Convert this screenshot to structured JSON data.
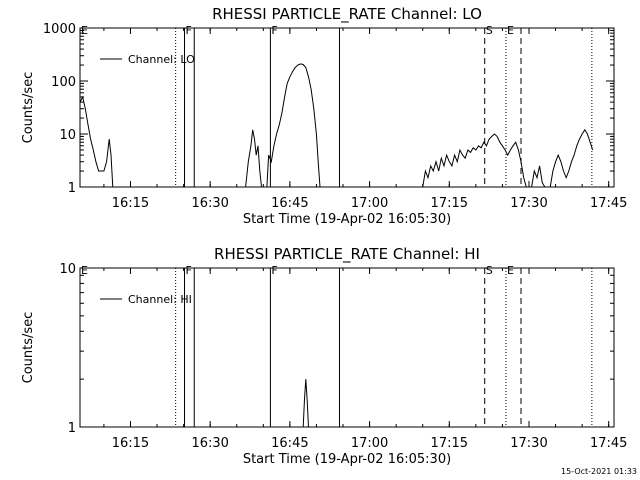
{
  "timestamp": "15-Oct-2021 01:33",
  "chart_data": [
    {
      "type": "line",
      "title": "RHESSI PARTICLE_RATE Channel: LO",
      "xlabel": "Start Time (19-Apr-02 16:05:30)",
      "ylabel": "Counts/sec",
      "x_unit": "minutes",
      "xlim": [
        "16:05:30",
        "17:46:00"
      ],
      "yscale": "log",
      "ylim": [
        1,
        1000
      ],
      "x_ticks": [
        "16:15",
        "16:30",
        "16:45",
        "17:00",
        "17:15",
        "17:30",
        "17:45"
      ],
      "y_ticks": [
        "1",
        "10",
        "100",
        "1000"
      ],
      "legend": {
        "label": "Channel: LO",
        "position": "top-left"
      },
      "markers": [
        {
          "time": "16:23:30",
          "style": "dotted",
          "label": ""
        },
        {
          "time": "16:25:10",
          "style": "solid",
          "label": "F"
        },
        {
          "time": "16:27:00",
          "style": "solid",
          "label": ""
        },
        {
          "time": "16:41:20",
          "style": "solid",
          "label": "F"
        },
        {
          "time": "16:54:20",
          "style": "solid",
          "label": ""
        },
        {
          "time": "17:21:40",
          "style": "dashed",
          "label": "S"
        },
        {
          "time": "17:25:40",
          "style": "dotted",
          "label": "E"
        },
        {
          "time": "17:28:30",
          "style": "dashed",
          "label": ""
        },
        {
          "time": "17:41:50",
          "style": "dotted",
          "label": ""
        }
      ],
      "edge_label": "E",
      "segments": [
        [
          [
            "16:05:30",
            40
          ],
          [
            "16:06:00",
            50
          ],
          [
            "16:06:30",
            30
          ],
          [
            "16:07:00",
            15
          ],
          [
            "16:07:30",
            8
          ],
          [
            "16:08:00",
            5
          ],
          [
            "16:08:30",
            3
          ],
          [
            "16:09:00",
            2
          ],
          [
            "16:10:00",
            2
          ],
          [
            "16:10:30",
            3
          ],
          [
            "16:11:00",
            8
          ],
          [
            "16:11:20",
            4
          ],
          [
            "16:11:40",
            1
          ]
        ],
        [
          [
            "16:36:40",
            1
          ],
          [
            "16:37:10",
            3
          ],
          [
            "16:37:40",
            6
          ],
          [
            "16:38:00",
            12
          ],
          [
            "16:38:20",
            8
          ],
          [
            "16:38:40",
            4
          ],
          [
            "16:39:00",
            6
          ],
          [
            "16:39:20",
            2
          ],
          [
            "16:39:40",
            1
          ]
        ],
        [
          [
            "16:40:40",
            1
          ],
          [
            "16:41:00",
            4
          ],
          [
            "16:41:30",
            3
          ],
          [
            "16:42:00",
            6
          ],
          [
            "16:42:30",
            10
          ],
          [
            "16:43:00",
            15
          ],
          [
            "16:43:30",
            25
          ],
          [
            "16:44:00",
            50
          ],
          [
            "16:44:30",
            90
          ],
          [
            "16:45:00",
            120
          ],
          [
            "16:45:30",
            150
          ],
          [
            "16:46:00",
            180
          ],
          [
            "16:46:30",
            200
          ],
          [
            "16:47:00",
            210
          ],
          [
            "16:47:30",
            205
          ],
          [
            "16:48:00",
            180
          ],
          [
            "16:48:30",
            120
          ],
          [
            "16:49:00",
            70
          ],
          [
            "16:49:30",
            30
          ],
          [
            "16:50:00",
            10
          ],
          [
            "16:50:20",
            3
          ],
          [
            "16:50:40",
            1
          ]
        ],
        [
          [
            "17:10:00",
            1
          ],
          [
            "17:10:30",
            2
          ],
          [
            "17:11:00",
            1.5
          ],
          [
            "17:11:30",
            2.5
          ],
          [
            "17:12:00",
            2
          ],
          [
            "17:12:30",
            3
          ],
          [
            "17:13:00",
            2
          ],
          [
            "17:13:30",
            3.5
          ],
          [
            "17:14:00",
            2.5
          ],
          [
            "17:14:30",
            4
          ],
          [
            "17:15:00",
            3
          ],
          [
            "17:15:30",
            2.5
          ],
          [
            "17:16:00",
            4
          ],
          [
            "17:16:30",
            3
          ],
          [
            "17:17:00",
            5
          ],
          [
            "17:17:30",
            4
          ],
          [
            "17:18:00",
            3.5
          ],
          [
            "17:18:30",
            5
          ],
          [
            "17:19:00",
            4.5
          ],
          [
            "17:19:30",
            5.5
          ],
          [
            "17:20:00",
            5
          ],
          [
            "17:20:30",
            6
          ],
          [
            "17:21:00",
            5.5
          ],
          [
            "17:21:30",
            7
          ],
          [
            "17:22:00",
            6
          ],
          [
            "17:22:30",
            8
          ],
          [
            "17:23:00",
            9
          ],
          [
            "17:23:30",
            10
          ],
          [
            "17:24:00",
            9
          ],
          [
            "17:24:30",
            7
          ],
          [
            "17:25:00",
            6
          ],
          [
            "17:25:30",
            5
          ],
          [
            "17:26:00",
            4
          ],
          [
            "17:26:30",
            5
          ],
          [
            "17:27:00",
            6
          ],
          [
            "17:27:30",
            7
          ],
          [
            "17:28:00",
            5
          ],
          [
            "17:28:30",
            3
          ],
          [
            "17:29:00",
            1.5
          ],
          [
            "17:29:30",
            1
          ]
        ],
        [
          [
            "17:30:30",
            1
          ],
          [
            "17:31:00",
            2
          ],
          [
            "17:31:30",
            1.5
          ],
          [
            "17:32:00",
            2.5
          ],
          [
            "17:32:30",
            1.2
          ],
          [
            "17:33:00",
            1
          ]
        ],
        [
          [
            "17:34:00",
            1
          ],
          [
            "17:34:30",
            2
          ],
          [
            "17:35:00",
            3
          ],
          [
            "17:35:30",
            4
          ],
          [
            "17:36:00",
            3
          ],
          [
            "17:36:30",
            2
          ],
          [
            "17:37:00",
            1.5
          ],
          [
            "17:37:30",
            2
          ],
          [
            "17:38:00",
            3
          ],
          [
            "17:38:30",
            4
          ],
          [
            "17:39:00",
            6
          ],
          [
            "17:39:30",
            8
          ],
          [
            "17:40:00",
            10
          ],
          [
            "17:40:30",
            12
          ],
          [
            "17:41:00",
            10
          ],
          [
            "17:41:30",
            7
          ],
          [
            "17:42:00",
            5
          ]
        ]
      ]
    },
    {
      "type": "line",
      "title": "RHESSI PARTICLE_RATE Channel: HI",
      "xlabel": "Start Time (19-Apr-02 16:05:30)",
      "ylabel": "Counts/sec",
      "x_unit": "minutes",
      "xlim": [
        "16:05:30",
        "17:46:00"
      ],
      "yscale": "log",
      "ylim": [
        1,
        10
      ],
      "x_ticks": [
        "16:15",
        "16:30",
        "16:45",
        "17:00",
        "17:15",
        "17:30",
        "17:45"
      ],
      "y_ticks": [
        "1",
        "10"
      ],
      "legend": {
        "label": "Channel: HI",
        "position": "top-left"
      },
      "markers": [
        {
          "time": "16:23:30",
          "style": "dotted",
          "label": ""
        },
        {
          "time": "16:25:10",
          "style": "solid",
          "label": "F"
        },
        {
          "time": "16:27:00",
          "style": "solid",
          "label": ""
        },
        {
          "time": "16:41:20",
          "style": "solid",
          "label": "F"
        },
        {
          "time": "16:54:20",
          "style": "solid",
          "label": ""
        },
        {
          "time": "17:21:40",
          "style": "dashed",
          "label": "S"
        },
        {
          "time": "17:25:40",
          "style": "dotted",
          "label": "E"
        },
        {
          "time": "17:28:30",
          "style": "dashed",
          "label": ""
        },
        {
          "time": "17:41:50",
          "style": "dotted",
          "label": ""
        }
      ],
      "edge_label": "E",
      "segments": [
        [
          [
            "16:47:30",
            1
          ],
          [
            "16:47:45",
            1.5
          ],
          [
            "16:48:00",
            2
          ],
          [
            "16:48:15",
            1.5
          ],
          [
            "16:48:30",
            1
          ]
        ]
      ]
    }
  ]
}
